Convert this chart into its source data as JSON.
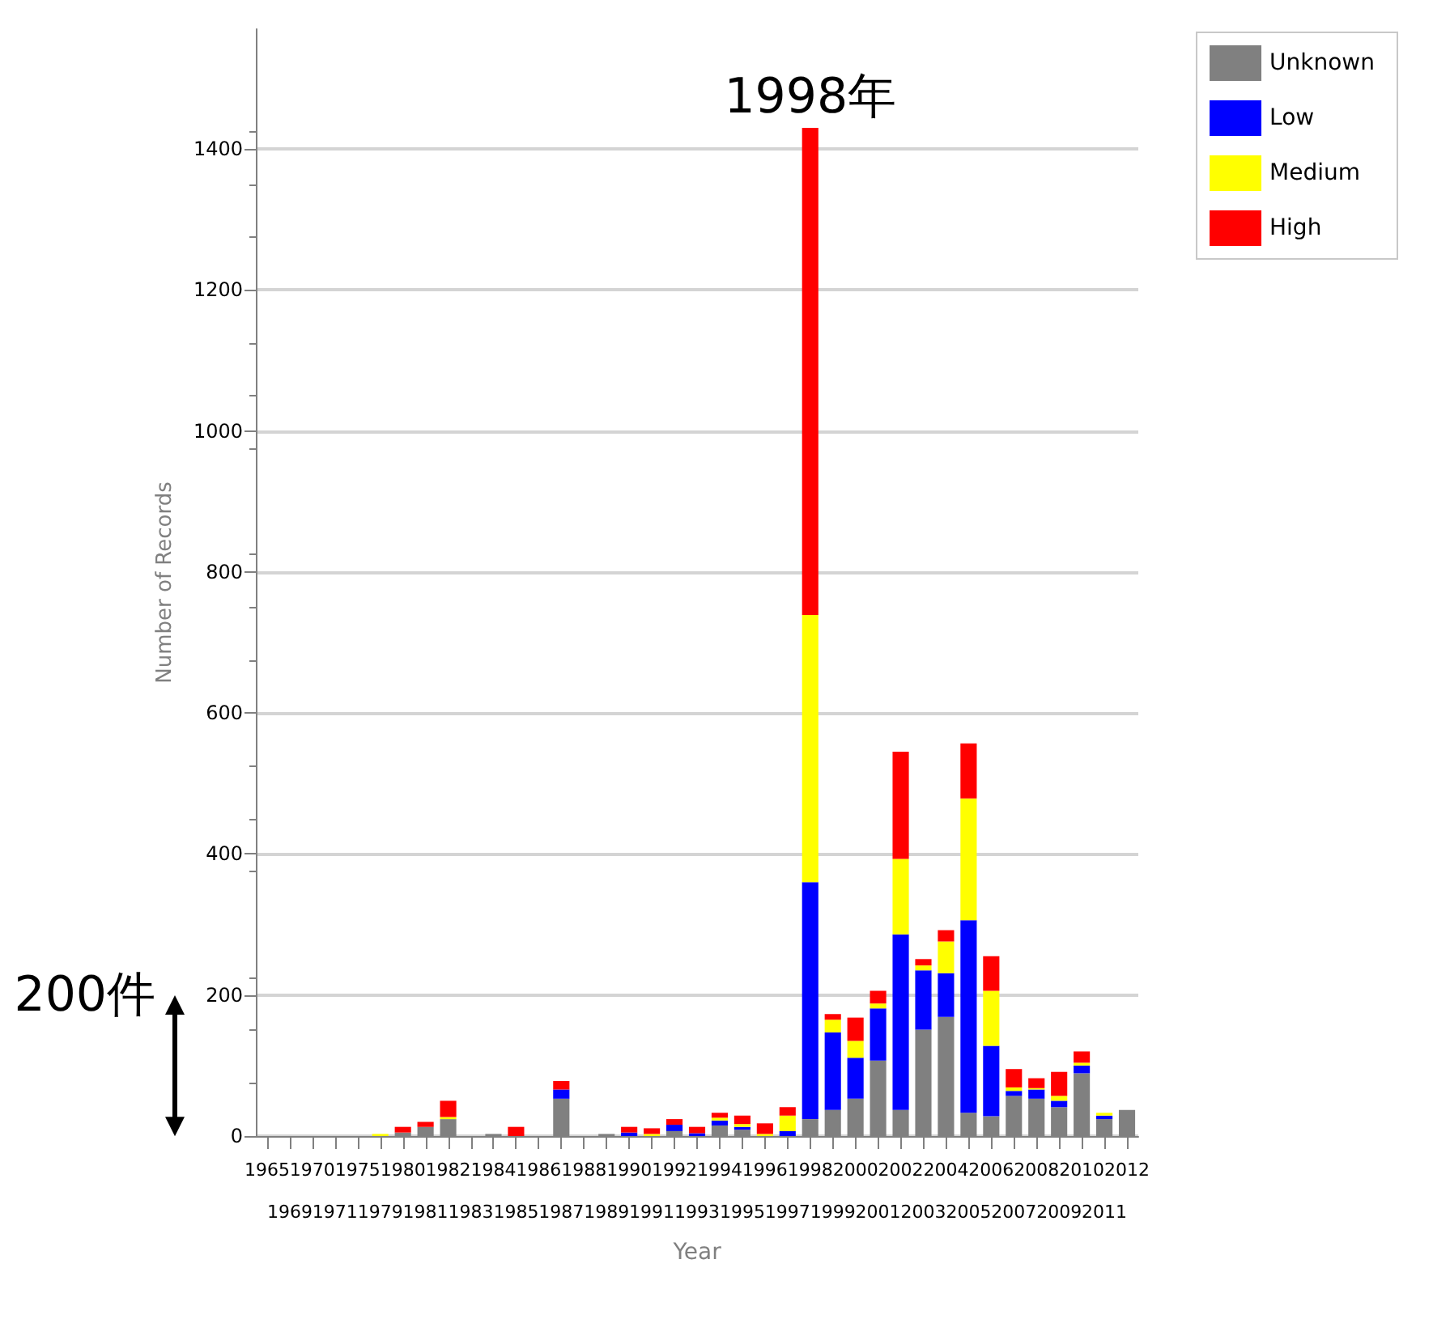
{
  "chart_data": {
    "type": "bar",
    "stacked": true,
    "xlabel": "Year",
    "ylabel": "Number of Records",
    "categories": [
      "1965",
      "1969",
      "1970",
      "1971",
      "1975",
      "1979",
      "1980",
      "1981",
      "1982",
      "1983",
      "1984",
      "1985",
      "1986",
      "1987",
      "1988",
      "1989",
      "1990",
      "1991",
      "1992",
      "1993",
      "1994",
      "1995",
      "1996",
      "1997",
      "1998",
      "1999",
      "2000",
      "2001",
      "2002",
      "2003",
      "2004",
      "2005",
      "2006",
      "2007",
      "2008",
      "2009",
      "2010",
      "2011",
      "2012"
    ],
    "series": [
      {
        "name": "Unknown",
        "color": "#808080",
        "values": [
          0,
          0,
          0,
          0,
          0,
          0,
          5,
          13,
          24,
          0,
          3,
          0,
          0,
          53,
          0,
          3,
          0,
          null,
          7,
          0,
          15,
          9,
          null,
          0,
          24,
          37,
          53,
          107,
          37,
          151,
          169,
          33,
          28,
          57,
          53,
          41,
          89,
          24,
          37
        ]
      },
      {
        "name": "Low",
        "color": "#0000ff",
        "values": [
          0,
          0,
          0,
          0,
          0,
          0,
          0,
          0,
          0,
          0,
          0,
          0,
          0,
          13,
          0,
          0,
          5,
          0,
          9,
          4,
          7,
          4,
          0,
          7,
          336,
          110,
          58,
          74,
          249,
          84,
          62,
          273,
          100,
          7,
          13,
          9,
          11,
          5,
          0
        ]
      },
      {
        "name": "Medium",
        "color": "#ffff00",
        "values": [
          0,
          0,
          0,
          0,
          0,
          3,
          0,
          0,
          3,
          0,
          0,
          0,
          0,
          0,
          0,
          0,
          0,
          3,
          0,
          0,
          4,
          4,
          3,
          22,
          379,
          18,
          24,
          7,
          107,
          7,
          45,
          173,
          78,
          5,
          2,
          7,
          4,
          4,
          0
        ]
      },
      {
        "name": "High",
        "color": "#ff0000",
        "values": [
          0,
          0,
          0,
          0,
          0,
          0,
          8,
          7,
          23,
          0,
          0,
          13,
          0,
          12,
          0,
          0,
          8,
          8,
          8,
          9,
          7,
          12,
          15,
          12,
          691,
          8,
          33,
          18,
          152,
          9,
          16,
          78,
          49,
          26,
          14,
          34,
          16,
          0,
          0
        ]
      }
    ],
    "ylim": [
      0,
      1570
    ],
    "yticks": [
      0,
      200,
      400,
      600,
      800,
      1000,
      1200,
      1400
    ],
    "grid": "y",
    "legend": "top right",
    "annotations": [
      {
        "text": "1998年",
        "x": "1998",
        "y": 1430
      },
      "200件"
    ]
  }
}
